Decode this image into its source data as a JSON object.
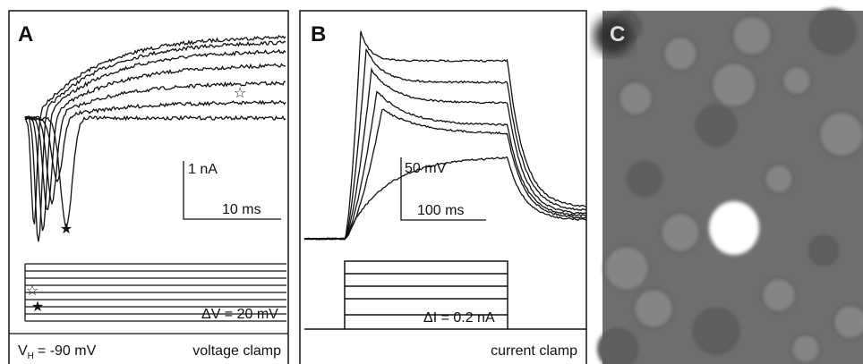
{
  "panels": [
    {
      "label": "A",
      "scale_current": "1 nA",
      "scale_time": "10 ms",
      "step_label": "ΔV = 20 mV",
      "holding": {
        "symbol": "V",
        "subscript": "H",
        "text": "= -90 mV"
      },
      "mode": "voltage clamp"
    },
    {
      "label": "B",
      "scale_voltage": "50 mV",
      "scale_time": "100 ms",
      "step_label": "ΔI = 0.2 nA",
      "mode": "current clamp"
    },
    {
      "label": "C"
    }
  ]
}
